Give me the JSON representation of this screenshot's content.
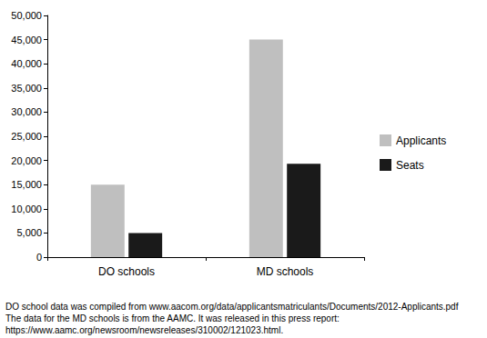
{
  "chart_data": {
    "type": "bar",
    "categories": [
      "DO schools",
      "MD schools"
    ],
    "series": [
      {
        "name": "Applicants",
        "color": "#bfbfbf",
        "values": [
          15000,
          45000
        ]
      },
      {
        "name": "Seats",
        "color": "#1a1a1a",
        "values": [
          5000,
          19300
        ]
      }
    ],
    "ylim": [
      0,
      50000
    ],
    "yticks": [
      0,
      {
        "value": 5000,
        "label": "5,000"
      },
      {
        "value": 10000,
        "label": "10,000"
      },
      {
        "value": 15000,
        "label": "15,000"
      },
      {
        "value": 20000,
        "label": "20,000"
      },
      {
        "value": 25000,
        "label": "25,000"
      },
      {
        "value": 30000,
        "label": "30,000"
      },
      {
        "value": 35000,
        "label": "35,000"
      },
      {
        "value": 40000,
        "label": "40,000"
      },
      {
        "value": 45000,
        "label": "45,000"
      },
      {
        "value": 50000,
        "label": "50,000"
      }
    ],
    "grid": false,
    "legend": "right",
    "annotations": [
      "DO school data was compiled from www.aacom.org/data/applicantsmatriculants/Documents/2012-Applicants.pdf",
      "The data for the MD schools is from the AAMC. It was released in this press report:",
      "https://www.aamc.org/newsroom/newsreleases/310002/121023.html."
    ]
  }
}
